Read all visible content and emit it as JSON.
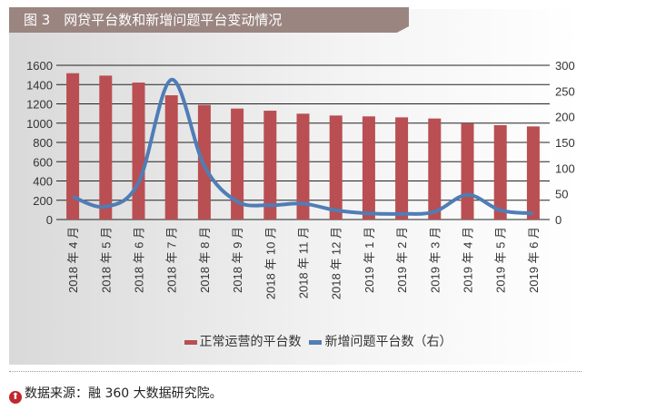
{
  "title": "图 3　网贷平台数和新增问题平台变动情况",
  "source": "数据来源：融 360 大数据研究院。",
  "colors": {
    "bar": "#b94f52",
    "line": "#4f7db6",
    "title_bg": "#9a8580"
  },
  "chart_data": {
    "type": "bar+line",
    "categories": [
      "2018 年 4 月",
      "2018 年 5 月",
      "2018 年 6 月",
      "2018 年 7 月",
      "2018 年 8 月",
      "2018 年 9 月",
      "2018 年 10 月",
      "2018 年 11 月",
      "2018 年 12 月",
      "2019 年 1 月",
      "2019 年 2 月",
      "2019 年 3 月",
      "2019 年 4 月",
      "2019 年 5 月",
      "2019 年 6 月"
    ],
    "series": [
      {
        "name": "正常运营的平台数",
        "type": "bar",
        "axis": "left",
        "values": [
          1518,
          1493,
          1421,
          1289,
          1189,
          1151,
          1129,
          1098,
          1079,
          1070,
          1060,
          1048,
          998,
          979,
          966
        ]
      },
      {
        "name": "新增问题平台数（右）",
        "type": "line",
        "axis": "right",
        "values": [
          44,
          25,
          72,
          272,
          104,
          35,
          28,
          31,
          18,
          12,
          11,
          15,
          48,
          18,
          12
        ]
      }
    ],
    "ylim_left": [
      0,
      1600
    ],
    "yticks_left": [
      0,
      200,
      400,
      600,
      800,
      1000,
      1200,
      1400,
      1600
    ],
    "ylim_right": [
      0,
      300
    ],
    "yticks_right": [
      0,
      50,
      100,
      150,
      200,
      250,
      300
    ],
    "grid": true,
    "legend": "bottom"
  }
}
